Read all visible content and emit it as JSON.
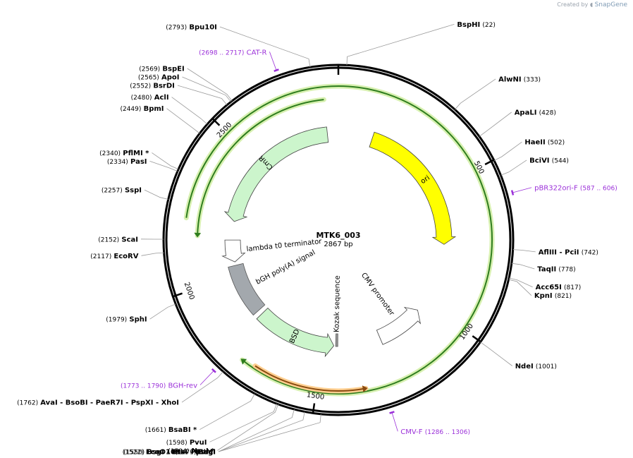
{
  "plasmid": {
    "name": "MTK6_003",
    "length_label": "2867 bp",
    "total_bp": 2867
  },
  "watermark": {
    "prefix": "Created by",
    "brand": "SnapGene"
  },
  "ticks": [
    {
      "bp": 500,
      "label": "500"
    },
    {
      "bp": 1000,
      "label": "1000"
    },
    {
      "bp": 1500,
      "label": "1500"
    },
    {
      "bp": 2000,
      "label": "2000"
    },
    {
      "bp": 2500,
      "label": "2500"
    }
  ],
  "sites": [
    {
      "name": "Bpu10I",
      "pos": "(2793)",
      "bp": 2793
    },
    {
      "name": "BspHI",
      "pos": "(22)",
      "bp": 22
    },
    {
      "name": "AlwNI",
      "pos": "(333)",
      "bp": 333
    },
    {
      "name": "ApaLI",
      "pos": "(428)",
      "bp": 428
    },
    {
      "name": "HaeII",
      "pos": "(502)",
      "bp": 502
    },
    {
      "name": "BciVI",
      "pos": "(544)",
      "bp": 544
    },
    {
      "name": "AflIII  -  PciI",
      "pos": "(742)",
      "bp": 742
    },
    {
      "name": "TaqII",
      "pos": "(778)",
      "bp": 778
    },
    {
      "name": "Acc65I",
      "pos": "(817)",
      "bp": 817
    },
    {
      "name": "KpnI",
      "pos": "(821)",
      "bp": 821
    },
    {
      "name": "NdeI",
      "pos": "(1001)",
      "bp": 1001
    },
    {
      "name": "EagI",
      "pos": "(1479)",
      "bp": 1479
    },
    {
      "name": "EcoO109I  - PpuMI",
      "pos": "(1522)",
      "bp": 1522
    },
    {
      "name": "BsgI  - BtsI  - BtsαI",
      "pos": "(1550)",
      "bp": 1550
    },
    {
      "name": "NruI *",
      "pos": "(1594)",
      "bp": 1594
    },
    {
      "name": "PvuI",
      "pos": "(1598)",
      "bp": 1598
    },
    {
      "name": "BsaBI *",
      "pos": "(1661)",
      "bp": 1661
    },
    {
      "name": "AvaI   - BsoBI   - PaeR7I   - PspXI   - XhoI",
      "pos": "(1762)",
      "bp": 1762
    },
    {
      "name": "SphI",
      "pos": "(1979)",
      "bp": 1979
    },
    {
      "name": "EcoRV",
      "pos": "(2117)",
      "bp": 2117
    },
    {
      "name": "ScaI",
      "pos": "(2152)",
      "bp": 2152
    },
    {
      "name": "SspI",
      "pos": "(2257)",
      "bp": 2257
    },
    {
      "name": "PasI",
      "pos": "(2334)",
      "bp": 2334
    },
    {
      "name": "PflMI *",
      "pos": "(2340)",
      "bp": 2340
    },
    {
      "name": "BpmI",
      "pos": "(2449)",
      "bp": 2449
    },
    {
      "name": "AclI",
      "pos": "(2480)",
      "bp": 2480
    },
    {
      "name": "BsrDI",
      "pos": "(2552)",
      "bp": 2552
    },
    {
      "name": "ApoI",
      "pos": "(2565)",
      "bp": 2565
    },
    {
      "name": "BspEI",
      "pos": "(2569)",
      "bp": 2569
    }
  ],
  "primers": [
    {
      "name": "CAT-R",
      "range": "(2698 .. 2717)",
      "bp": 2707,
      "color": "#9b30d9"
    },
    {
      "name": "pBR322ori-F",
      "range": "(587 .. 606)",
      "bp": 596,
      "color": "#9b30d9"
    },
    {
      "name": "CMV-F",
      "range": "(1286 .. 1306)",
      "bp": 1296,
      "color": "#9b30d9"
    },
    {
      "name": "BGH-rev",
      "range": "(1773 .. 1790)",
      "bp": 1781,
      "color": "#9b30d9"
    }
  ],
  "features": [
    {
      "name": "ori",
      "start": 147,
      "end": 736,
      "strand": "+",
      "color": "#ffff00"
    },
    {
      "name": "CMV promoter",
      "start": 1047,
      "end": 1250,
      "strand": "-",
      "color": "#ffffff"
    },
    {
      "name": "Kozak sequence",
      "start": 1436,
      "end": 1445,
      "strand": "none",
      "color": "#999999"
    },
    {
      "name": "BSD",
      "start": 1453,
      "end": 1800,
      "strand": "-",
      "color": "#ccf5cc"
    },
    {
      "name": "bGH poly(A) signal",
      "start": 1820,
      "end": 2040,
      "strand": "none",
      "color": "#a3a8ad"
    },
    {
      "name": "lambda t0 terminator",
      "start": 2055,
      "end": 2150,
      "strand": "-",
      "color": "#ffffff"
    },
    {
      "name": "CmR",
      "start": 2230,
      "end": 2820,
      "strand": "-",
      "color": "#ccf5cc"
    }
  ],
  "arcs": [
    {
      "start": 2820,
      "end": 2164,
      "strand": "-",
      "radius": 200,
      "color": "#2e7d1e",
      "halo": "#d7f0b0"
    },
    {
      "start": 2216,
      "end": 1742,
      "strand": "+",
      "radius": 218,
      "color": "#2e7d1e",
      "halo": "#d7f0b0"
    },
    {
      "start": 1700,
      "end": 1350,
      "strand": "-",
      "radius": 214,
      "color": "#8a4b10",
      "halo": "#ffcf90"
    }
  ]
}
